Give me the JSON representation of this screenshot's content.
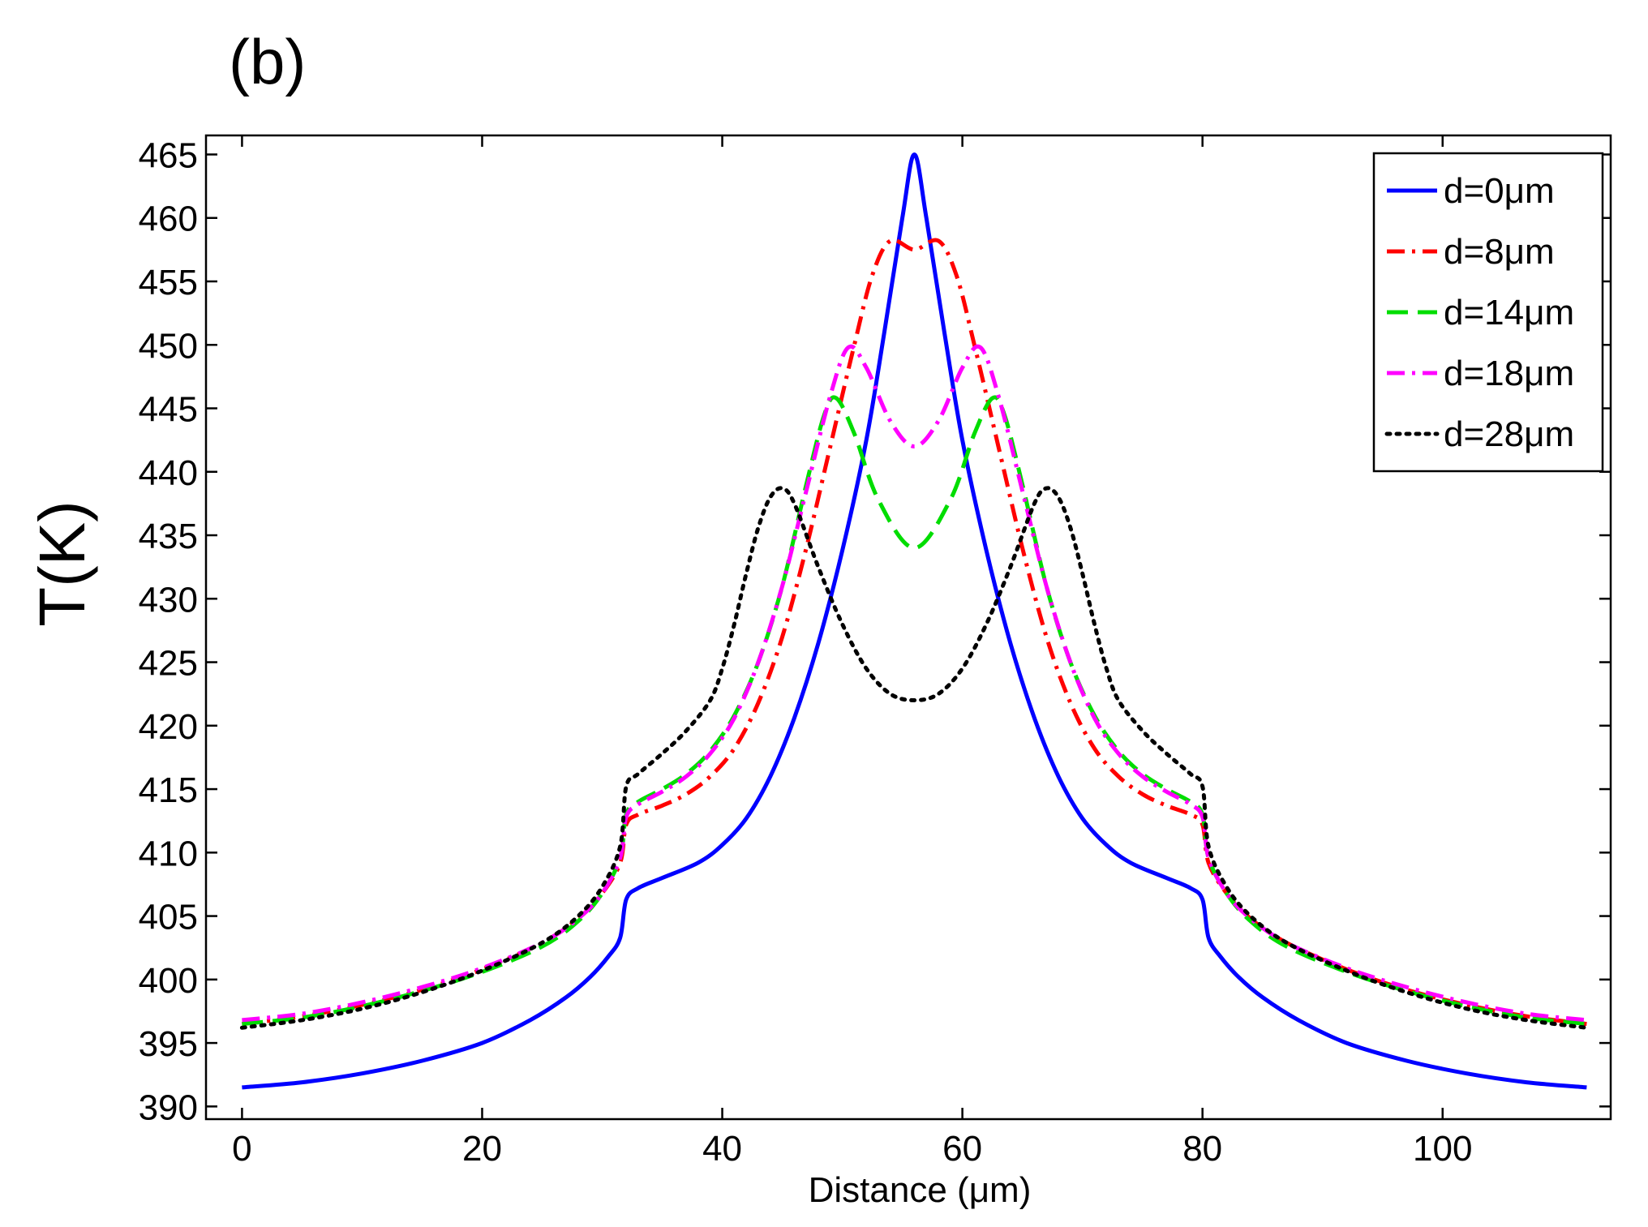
{
  "chart_data": {
    "type": "line",
    "panel_label": "(b)",
    "title": "",
    "xlabel": "Distance (μm)",
    "ylabel": "T(K)",
    "xlim": [
      -3,
      114
    ],
    "ylim": [
      389,
      466.5
    ],
    "xticks": [
      0,
      20,
      40,
      60,
      80,
      100
    ],
    "yticks": [
      390,
      395,
      400,
      405,
      410,
      415,
      420,
      425,
      430,
      435,
      440,
      445,
      450,
      455,
      460,
      465
    ],
    "grid": false,
    "legend_position": "top-right",
    "series": [
      {
        "name": "d=0μm",
        "color": "#0000ff",
        "style": "solid",
        "points": [
          [
            0,
            391.5
          ],
          [
            5,
            391.9
          ],
          [
            10,
            392.6
          ],
          [
            15,
            393.6
          ],
          [
            20,
            395.0
          ],
          [
            24,
            396.8
          ],
          [
            27,
            398.6
          ],
          [
            29,
            400.2
          ],
          [
            30.5,
            401.8
          ],
          [
            31.5,
            403.3
          ],
          [
            32,
            406.3
          ],
          [
            33,
            407.2
          ],
          [
            35,
            408.0
          ],
          [
            38,
            409.2
          ],
          [
            40,
            410.6
          ],
          [
            42,
            412.7
          ],
          [
            44,
            416.0
          ],
          [
            46,
            420.6
          ],
          [
            48,
            426.5
          ],
          [
            50,
            433.8
          ],
          [
            52,
            442.5
          ],
          [
            53.5,
            451.0
          ],
          [
            55,
            460.0
          ],
          [
            56,
            465.0
          ],
          [
            57,
            460.0
          ],
          [
            58.5,
            451.0
          ],
          [
            60,
            442.5
          ],
          [
            62,
            433.8
          ],
          [
            64,
            426.5
          ],
          [
            66,
            420.6
          ],
          [
            68,
            416.0
          ],
          [
            70,
            412.7
          ],
          [
            72,
            410.6
          ],
          [
            74,
            409.2
          ],
          [
            77,
            408.0
          ],
          [
            79,
            407.2
          ],
          [
            80,
            406.3
          ],
          [
            80.5,
            403.3
          ],
          [
            81.5,
            401.8
          ],
          [
            83,
            400.2
          ],
          [
            85,
            398.6
          ],
          [
            88,
            396.8
          ],
          [
            92,
            395.0
          ],
          [
            97,
            393.6
          ],
          [
            102,
            392.6
          ],
          [
            107,
            391.9
          ],
          [
            112,
            391.5
          ]
        ]
      },
      {
        "name": "d=8μm",
        "color": "#ff0000",
        "style": "dashdot",
        "points": [
          [
            0,
            396.5
          ],
          [
            5,
            397.1
          ],
          [
            10,
            398.0
          ],
          [
            15,
            399.2
          ],
          [
            20,
            400.8
          ],
          [
            25,
            402.9
          ],
          [
            28,
            404.8
          ],
          [
            30,
            406.8
          ],
          [
            31.5,
            409.2
          ],
          [
            32,
            412.2
          ],
          [
            33,
            413.0
          ],
          [
            35,
            413.7
          ],
          [
            37,
            414.6
          ],
          [
            39,
            416.0
          ],
          [
            41,
            418.2
          ],
          [
            43,
            421.8
          ],
          [
            45,
            427.0
          ],
          [
            47,
            434.0
          ],
          [
            49,
            442.0
          ],
          [
            51,
            450.0
          ],
          [
            52.5,
            455.5
          ],
          [
            54,
            458.2
          ],
          [
            56,
            457.5
          ],
          [
            58,
            458.2
          ],
          [
            59.5,
            455.5
          ],
          [
            61,
            450.0
          ],
          [
            63,
            442.0
          ],
          [
            65,
            434.0
          ],
          [
            67,
            427.0
          ],
          [
            69,
            421.8
          ],
          [
            71,
            418.2
          ],
          [
            73,
            416.0
          ],
          [
            75,
            414.6
          ],
          [
            77,
            413.7
          ],
          [
            79,
            413.0
          ],
          [
            80,
            412.2
          ],
          [
            80.5,
            409.2
          ],
          [
            82,
            406.8
          ],
          [
            84,
            404.8
          ],
          [
            87,
            402.9
          ],
          [
            92,
            400.8
          ],
          [
            97,
            399.2
          ],
          [
            102,
            398.0
          ],
          [
            107,
            397.1
          ],
          [
            112,
            396.5
          ]
        ]
      },
      {
        "name": "d=14μm",
        "color": "#00dd00",
        "style": "dashed",
        "points": [
          [
            0,
            396.5
          ],
          [
            5,
            397.0
          ],
          [
            10,
            397.9
          ],
          [
            15,
            399.1
          ],
          [
            20,
            400.6
          ],
          [
            25,
            402.6
          ],
          [
            28,
            404.6
          ],
          [
            30,
            406.8
          ],
          [
            31.5,
            409.6
          ],
          [
            32,
            413.0
          ],
          [
            33,
            414.0
          ],
          [
            35,
            415.0
          ],
          [
            37,
            416.2
          ],
          [
            39,
            418.0
          ],
          [
            41,
            420.8
          ],
          [
            43,
            425.0
          ],
          [
            45,
            431.0
          ],
          [
            47,
            439.0
          ],
          [
            48.5,
            444.5
          ],
          [
            49.5,
            445.8
          ],
          [
            51,
            443.0
          ],
          [
            53,
            437.8
          ],
          [
            56,
            434.0
          ],
          [
            59,
            437.8
          ],
          [
            61,
            443.0
          ],
          [
            62.5,
            445.8
          ],
          [
            63.5,
            444.5
          ],
          [
            65,
            439.0
          ],
          [
            67,
            431.0
          ],
          [
            69,
            425.0
          ],
          [
            71,
            420.8
          ],
          [
            73,
            418.0
          ],
          [
            75,
            416.2
          ],
          [
            77,
            415.0
          ],
          [
            79,
            414.0
          ],
          [
            80,
            413.0
          ],
          [
            80.5,
            409.6
          ],
          [
            82,
            406.8
          ],
          [
            84,
            404.6
          ],
          [
            87,
            402.6
          ],
          [
            92,
            400.6
          ],
          [
            97,
            399.1
          ],
          [
            102,
            397.9
          ],
          [
            107,
            397.0
          ],
          [
            112,
            396.5
          ]
        ]
      },
      {
        "name": "d=18μm",
        "color": "#ff00ff",
        "style": "dashdot",
        "points": [
          [
            0,
            396.8
          ],
          [
            5,
            397.3
          ],
          [
            10,
            398.2
          ],
          [
            15,
            399.4
          ],
          [
            20,
            400.9
          ],
          [
            25,
            402.9
          ],
          [
            28,
            404.8
          ],
          [
            30,
            406.8
          ],
          [
            31.5,
            409.6
          ],
          [
            32,
            412.8
          ],
          [
            33,
            413.8
          ],
          [
            35,
            414.8
          ],
          [
            37,
            416.0
          ],
          [
            39,
            417.8
          ],
          [
            41,
            420.6
          ],
          [
            43,
            425.0
          ],
          [
            45,
            431.0
          ],
          [
            47,
            438.5
          ],
          [
            49,
            446.0
          ],
          [
            50.5,
            449.8
          ],
          [
            52,
            448.2
          ],
          [
            54,
            444.0
          ],
          [
            56,
            442.0
          ],
          [
            58,
            444.0
          ],
          [
            60,
            448.2
          ],
          [
            61.5,
            449.8
          ],
          [
            63,
            446.0
          ],
          [
            65,
            438.5
          ],
          [
            67,
            431.0
          ],
          [
            69,
            425.0
          ],
          [
            71,
            420.6
          ],
          [
            73,
            417.8
          ],
          [
            75,
            416.0
          ],
          [
            77,
            414.8
          ],
          [
            79,
            413.8
          ],
          [
            80,
            412.8
          ],
          [
            80.5,
            409.6
          ],
          [
            82,
            406.8
          ],
          [
            84,
            404.8
          ],
          [
            87,
            402.9
          ],
          [
            92,
            400.9
          ],
          [
            97,
            399.4
          ],
          [
            102,
            398.2
          ],
          [
            107,
            397.3
          ],
          [
            112,
            396.8
          ]
        ]
      },
      {
        "name": "d=28μm",
        "color": "#000000",
        "style": "dotted",
        "points": [
          [
            0,
            396.2
          ],
          [
            5,
            396.8
          ],
          [
            10,
            397.7
          ],
          [
            15,
            399.0
          ],
          [
            20,
            400.7
          ],
          [
            25,
            402.9
          ],
          [
            28,
            405.0
          ],
          [
            30,
            407.3
          ],
          [
            31.5,
            410.5
          ],
          [
            32,
            415.2
          ],
          [
            33,
            416.2
          ],
          [
            35,
            417.8
          ],
          [
            37,
            419.6
          ],
          [
            39,
            422.0
          ],
          [
            40,
            424.5
          ],
          [
            41,
            428.0
          ],
          [
            42,
            432.0
          ],
          [
            43,
            435.6
          ],
          [
            44,
            438.0
          ],
          [
            45,
            438.7
          ],
          [
            46,
            437.5
          ],
          [
            48,
            432.5
          ],
          [
            50,
            428.0
          ],
          [
            52,
            424.5
          ],
          [
            54,
            422.5
          ],
          [
            56,
            422.0
          ],
          [
            58,
            422.5
          ],
          [
            60,
            424.5
          ],
          [
            62,
            428.0
          ],
          [
            64,
            432.5
          ],
          [
            66,
            437.5
          ],
          [
            67,
            438.7
          ],
          [
            68,
            438.0
          ],
          [
            69,
            435.6
          ],
          [
            70,
            432.0
          ],
          [
            71,
            428.0
          ],
          [
            72,
            424.5
          ],
          [
            73,
            422.0
          ],
          [
            75,
            419.6
          ],
          [
            77,
            417.8
          ],
          [
            79,
            416.2
          ],
          [
            80,
            415.2
          ],
          [
            80.5,
            410.5
          ],
          [
            82,
            407.3
          ],
          [
            84,
            405.0
          ],
          [
            87,
            402.9
          ],
          [
            92,
            400.7
          ],
          [
            97,
            399.0
          ],
          [
            102,
            397.7
          ],
          [
            107,
            396.8
          ],
          [
            112,
            396.2
          ]
        ]
      }
    ]
  }
}
